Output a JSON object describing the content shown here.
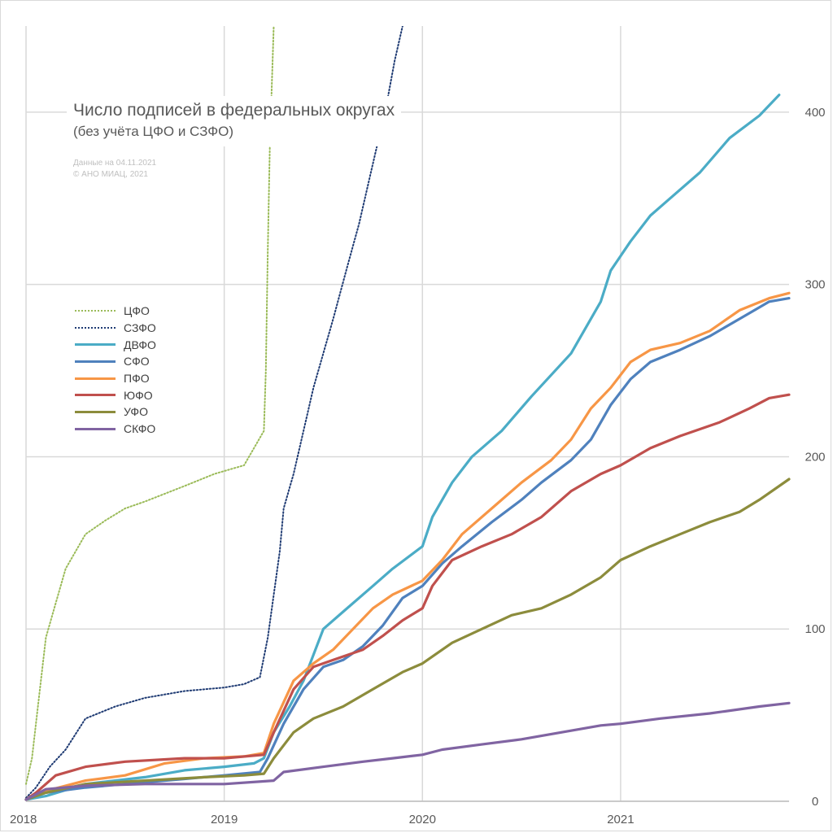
{
  "chart_data": {
    "type": "line",
    "title": "Число подписей в федеральных округах",
    "subtitle": "(без учёта ЦФО и СЗФО)",
    "note_lines": [
      "Данные на 04.11.2021",
      "© АНО МИАЦ, 2021"
    ],
    "x_ticks": [
      "2018",
      "2019",
      "2020",
      "2021"
    ],
    "y_ticks": [
      "0",
      "100",
      "200",
      "300",
      "400"
    ],
    "xlim": [
      2018.0,
      2021.85
    ],
    "ylim": [
      0,
      450
    ],
    "grid": true,
    "legend_position": "left",
    "series": [
      {
        "name": "ЦФО",
        "color": "#9bbb59",
        "style": "dotted",
        "points": [
          [
            2018.0,
            10
          ],
          [
            2018.03,
            25
          ],
          [
            2018.06,
            55
          ],
          [
            2018.1,
            95
          ],
          [
            2018.15,
            115
          ],
          [
            2018.2,
            135
          ],
          [
            2018.25,
            145
          ],
          [
            2018.3,
            155
          ],
          [
            2018.4,
            163
          ],
          [
            2018.5,
            170
          ],
          [
            2018.6,
            174
          ],
          [
            2018.8,
            183
          ],
          [
            2018.95,
            190
          ],
          [
            2019.1,
            195
          ],
          [
            2019.15,
            205
          ],
          [
            2019.2,
            215
          ],
          [
            2019.21,
            250
          ],
          [
            2019.22,
            320
          ],
          [
            2019.23,
            380
          ],
          [
            2019.25,
            450
          ]
        ]
      },
      {
        "name": "СЗФО",
        "color": "#1f3b73",
        "style": "dotted",
        "points": [
          [
            2018.0,
            2
          ],
          [
            2018.05,
            8
          ],
          [
            2018.12,
            20
          ],
          [
            2018.2,
            30
          ],
          [
            2018.3,
            48
          ],
          [
            2018.45,
            55
          ],
          [
            2018.6,
            60
          ],
          [
            2018.8,
            64
          ],
          [
            2019.0,
            66
          ],
          [
            2019.1,
            68
          ],
          [
            2019.18,
            72
          ],
          [
            2019.22,
            95
          ],
          [
            2019.28,
            145
          ],
          [
            2019.3,
            170
          ],
          [
            2019.35,
            190
          ],
          [
            2019.45,
            240
          ],
          [
            2019.55,
            280
          ],
          [
            2019.62,
            310
          ],
          [
            2019.68,
            335
          ],
          [
            2019.74,
            365
          ],
          [
            2019.78,
            385
          ],
          [
            2019.82,
            405
          ],
          [
            2019.86,
            430
          ],
          [
            2019.9,
            450
          ]
        ]
      },
      {
        "name": "ДВФО",
        "color": "#4bacc6",
        "style": "solid",
        "points": [
          [
            2018.0,
            1
          ],
          [
            2018.1,
            3
          ],
          [
            2018.3,
            10
          ],
          [
            2018.6,
            14
          ],
          [
            2018.8,
            18
          ],
          [
            2019.0,
            20
          ],
          [
            2019.15,
            22
          ],
          [
            2019.2,
            25
          ],
          [
            2019.25,
            40
          ],
          [
            2019.33,
            55
          ],
          [
            2019.4,
            70
          ],
          [
            2019.5,
            100
          ],
          [
            2019.6,
            110
          ],
          [
            2019.75,
            125
          ],
          [
            2019.85,
            135
          ],
          [
            2020.0,
            148
          ],
          [
            2020.05,
            165
          ],
          [
            2020.15,
            185
          ],
          [
            2020.25,
            200
          ],
          [
            2020.4,
            215
          ],
          [
            2020.55,
            235
          ],
          [
            2020.75,
            260
          ],
          [
            2020.9,
            290
          ],
          [
            2020.95,
            308
          ],
          [
            2021.05,
            325
          ],
          [
            2021.15,
            340
          ],
          [
            2021.25,
            350
          ],
          [
            2021.4,
            365
          ],
          [
            2021.55,
            385
          ],
          [
            2021.7,
            398
          ],
          [
            2021.8,
            410
          ]
        ]
      },
      {
        "name": "СФО",
        "color": "#4f81bd",
        "style": "solid",
        "points": [
          [
            2018.0,
            1
          ],
          [
            2018.1,
            5
          ],
          [
            2018.3,
            8
          ],
          [
            2018.6,
            11
          ],
          [
            2018.8,
            13
          ],
          [
            2019.0,
            15
          ],
          [
            2019.18,
            17
          ],
          [
            2019.22,
            25
          ],
          [
            2019.3,
            45
          ],
          [
            2019.4,
            65
          ],
          [
            2019.5,
            78
          ],
          [
            2019.6,
            82
          ],
          [
            2019.7,
            90
          ],
          [
            2019.8,
            102
          ],
          [
            2019.9,
            118
          ],
          [
            2020.0,
            125
          ],
          [
            2020.1,
            138
          ],
          [
            2020.2,
            148
          ],
          [
            2020.35,
            162
          ],
          [
            2020.5,
            175
          ],
          [
            2020.6,
            185
          ],
          [
            2020.75,
            198
          ],
          [
            2020.85,
            210
          ],
          [
            2020.95,
            230
          ],
          [
            2021.05,
            245
          ],
          [
            2021.15,
            255
          ],
          [
            2021.3,
            262
          ],
          [
            2021.45,
            270
          ],
          [
            2021.6,
            280
          ],
          [
            2021.75,
            290
          ],
          [
            2021.85,
            292
          ]
        ]
      },
      {
        "name": "ПФО",
        "color": "#f79646",
        "style": "solid",
        "points": [
          [
            2018.0,
            1
          ],
          [
            2018.1,
            6
          ],
          [
            2018.3,
            12
          ],
          [
            2018.5,
            15
          ],
          [
            2018.7,
            22
          ],
          [
            2018.9,
            25
          ],
          [
            2019.1,
            26
          ],
          [
            2019.2,
            28
          ],
          [
            2019.25,
            45
          ],
          [
            2019.35,
            70
          ],
          [
            2019.45,
            80
          ],
          [
            2019.55,
            88
          ],
          [
            2019.65,
            100
          ],
          [
            2019.75,
            112
          ],
          [
            2019.85,
            120
          ],
          [
            2020.0,
            128
          ],
          [
            2020.1,
            140
          ],
          [
            2020.2,
            155
          ],
          [
            2020.35,
            170
          ],
          [
            2020.5,
            185
          ],
          [
            2020.65,
            198
          ],
          [
            2020.75,
            210
          ],
          [
            2020.85,
            228
          ],
          [
            2020.95,
            240
          ],
          [
            2021.05,
            255
          ],
          [
            2021.15,
            262
          ],
          [
            2021.3,
            266
          ],
          [
            2021.45,
            273
          ],
          [
            2021.6,
            285
          ],
          [
            2021.75,
            292
          ],
          [
            2021.85,
            295
          ]
        ]
      },
      {
        "name": "ЮФО",
        "color": "#c0504d",
        "style": "solid",
        "points": [
          [
            2018.0,
            1
          ],
          [
            2018.05,
            5
          ],
          [
            2018.15,
            15
          ],
          [
            2018.3,
            20
          ],
          [
            2018.5,
            23
          ],
          [
            2018.8,
            25
          ],
          [
            2019.0,
            25
          ],
          [
            2019.2,
            27
          ],
          [
            2019.25,
            40
          ],
          [
            2019.35,
            65
          ],
          [
            2019.45,
            78
          ],
          [
            2019.55,
            82
          ],
          [
            2019.7,
            88
          ],
          [
            2019.8,
            96
          ],
          [
            2019.9,
            105
          ],
          [
            2020.0,
            112
          ],
          [
            2020.05,
            125
          ],
          [
            2020.15,
            140
          ],
          [
            2020.3,
            148
          ],
          [
            2020.45,
            155
          ],
          [
            2020.6,
            165
          ],
          [
            2020.75,
            180
          ],
          [
            2020.9,
            190
          ],
          [
            2021.0,
            195
          ],
          [
            2021.15,
            205
          ],
          [
            2021.3,
            212
          ],
          [
            2021.5,
            220
          ],
          [
            2021.65,
            228
          ],
          [
            2021.75,
            234
          ],
          [
            2021.85,
            236
          ]
        ]
      },
      {
        "name": "УФО",
        "color": "#8c8c3c",
        "style": "solid",
        "points": [
          [
            2018.0,
            1
          ],
          [
            2018.1,
            5
          ],
          [
            2018.3,
            10
          ],
          [
            2018.6,
            12
          ],
          [
            2018.9,
            14
          ],
          [
            2019.1,
            15
          ],
          [
            2019.2,
            16
          ],
          [
            2019.25,
            25
          ],
          [
            2019.35,
            40
          ],
          [
            2019.45,
            48
          ],
          [
            2019.6,
            55
          ],
          [
            2019.75,
            65
          ],
          [
            2019.9,
            75
          ],
          [
            2020.0,
            80
          ],
          [
            2020.15,
            92
          ],
          [
            2020.3,
            100
          ],
          [
            2020.45,
            108
          ],
          [
            2020.6,
            112
          ],
          [
            2020.75,
            120
          ],
          [
            2020.9,
            130
          ],
          [
            2021.0,
            140
          ],
          [
            2021.15,
            148
          ],
          [
            2021.3,
            155
          ],
          [
            2021.45,
            162
          ],
          [
            2021.6,
            168
          ],
          [
            2021.7,
            175
          ],
          [
            2021.85,
            187
          ]
        ]
      },
      {
        "name": "СКФО",
        "color": "#8064a2",
        "style": "solid",
        "points": [
          [
            2018.0,
            1
          ],
          [
            2018.1,
            7
          ],
          [
            2018.3,
            9
          ],
          [
            2018.6,
            10
          ],
          [
            2019.0,
            10
          ],
          [
            2019.25,
            12
          ],
          [
            2019.3,
            17
          ],
          [
            2019.5,
            20
          ],
          [
            2019.7,
            23
          ],
          [
            2019.85,
            25
          ],
          [
            2020.0,
            27
          ],
          [
            2020.1,
            30
          ],
          [
            2020.3,
            33
          ],
          [
            2020.5,
            36
          ],
          [
            2020.7,
            40
          ],
          [
            2020.9,
            44
          ],
          [
            2021.0,
            45
          ],
          [
            2021.2,
            48
          ],
          [
            2021.45,
            51
          ],
          [
            2021.7,
            55
          ],
          [
            2021.85,
            57
          ]
        ]
      }
    ]
  }
}
